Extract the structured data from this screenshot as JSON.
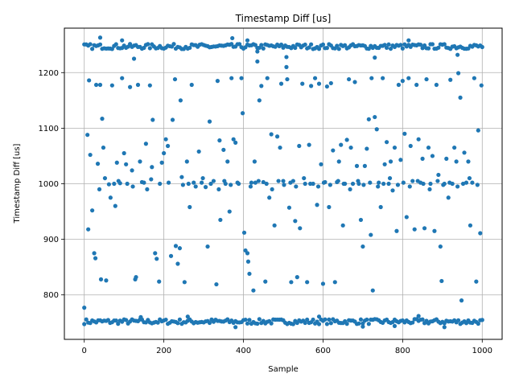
{
  "chart_data": {
    "type": "scatter",
    "title": "Timestamp Diff [us]",
    "xlabel": "Sample",
    "ylabel": "Timestamp Diff [us]",
    "xlim": [
      -50,
      1050
    ],
    "ylim": [
      720,
      1280
    ],
    "xticks": [
      0,
      200,
      400,
      600,
      800,
      1000
    ],
    "xtick_labels": [
      "0",
      "200",
      "400",
      "600",
      "800",
      "1000"
    ],
    "yticks": [
      800,
      900,
      1000,
      1100,
      1200
    ],
    "ytick_labels": [
      "800",
      "900",
      "1000",
      "1100",
      "1200"
    ],
    "grid": true,
    "legend": "none",
    "marker_color": "#1f77b4",
    "series": [
      {
        "points": [
          [
            0,
            777
          ],
          [
            8,
            1088
          ],
          [
            10,
            918
          ],
          [
            12,
            1186
          ],
          [
            20,
            952
          ],
          [
            25,
            875
          ],
          [
            28,
            866
          ],
          [
            30,
            1178
          ],
          [
            34,
            1036
          ],
          [
            40,
            1178
          ],
          [
            42,
            828
          ],
          [
            45,
            1117
          ],
          [
            48,
            1065
          ],
          [
            55,
            826
          ],
          [
            62,
            999
          ],
          [
            70,
            1177
          ],
          [
            75,
            1000
          ],
          [
            82,
            1038
          ],
          [
            90,
            1001
          ],
          [
            95,
            1190
          ],
          [
            100,
            1055
          ],
          [
            105,
            1035
          ],
          [
            115,
            1174
          ],
          [
            120,
            1024
          ],
          [
            128,
            828
          ],
          [
            130,
            832
          ],
          [
            135,
            1178
          ],
          [
            140,
            1040
          ],
          [
            150,
            1002
          ],
          [
            155,
            1072
          ],
          [
            165,
            1177
          ],
          [
            170,
            1030
          ],
          [
            172,
            1115
          ],
          [
            178,
            875
          ],
          [
            182,
            865
          ],
          [
            188,
            824
          ],
          [
            195,
            1038
          ],
          [
            200,
            1055
          ],
          [
            205,
            1080
          ],
          [
            210,
            1068
          ],
          [
            218,
            870
          ],
          [
            222,
            1115
          ],
          [
            228,
            1188
          ],
          [
            230,
            888
          ],
          [
            235,
            856
          ],
          [
            240,
            884
          ],
          [
            242,
            1150
          ],
          [
            245,
            1012
          ],
          [
            252,
            823
          ],
          [
            258,
            1040
          ],
          [
            265,
            958
          ],
          [
            270,
            1178
          ],
          [
            275,
            1002
          ],
          [
            288,
            1058
          ],
          [
            295,
            1002
          ],
          [
            305,
            994
          ],
          [
            310,
            887
          ],
          [
            315,
            1112
          ],
          [
            325,
            1005
          ],
          [
            332,
            819
          ],
          [
            335,
            1185
          ],
          [
            340,
            1078
          ],
          [
            342,
            935
          ],
          [
            350,
            1061
          ],
          [
            355,
            1000
          ],
          [
            360,
            1040
          ],
          [
            365,
            950
          ],
          [
            370,
            1190
          ],
          [
            375,
            1080
          ],
          [
            380,
            1074
          ],
          [
            385,
            1002
          ],
          [
            395,
            1190
          ],
          [
            398,
            1127
          ],
          [
            402,
            912
          ],
          [
            405,
            880
          ],
          [
            410,
            875
          ],
          [
            412,
            860
          ],
          [
            415,
            838
          ],
          [
            420,
            1002
          ],
          [
            425,
            808
          ],
          [
            428,
            1040
          ],
          [
            430,
            1002
          ],
          [
            435,
            1220
          ],
          [
            440,
            1150
          ],
          [
            445,
            1176
          ],
          [
            450,
            1003
          ],
          [
            455,
            824
          ],
          [
            460,
            1190
          ],
          [
            465,
            975
          ],
          [
            470,
            1089
          ],
          [
            478,
            925
          ],
          [
            485,
            1085
          ],
          [
            492,
            1065
          ],
          [
            495,
            1180
          ],
          [
            500,
            1005
          ],
          [
            508,
            1210
          ],
          [
            510,
            1188
          ],
          [
            515,
            957
          ],
          [
            520,
            823
          ],
          [
            525,
            1005
          ],
          [
            530,
            933
          ],
          [
            535,
            832
          ],
          [
            540,
            1068
          ],
          [
            542,
            920
          ],
          [
            548,
            1180
          ],
          [
            555,
            1000
          ],
          [
            560,
            823
          ],
          [
            565,
            1070
          ],
          [
            570,
            1176
          ],
          [
            575,
            1000
          ],
          [
            580,
            1190
          ],
          [
            585,
            962
          ],
          [
            590,
            1180
          ],
          [
            595,
            1035
          ],
          [
            600,
            820
          ],
          [
            605,
            1003
          ],
          [
            610,
            1175
          ],
          [
            615,
            958
          ],
          [
            620,
            1181
          ],
          [
            625,
            1060
          ],
          [
            630,
            823
          ],
          [
            635,
            1003
          ],
          [
            640,
            1040
          ],
          [
            645,
            1070
          ],
          [
            650,
            925
          ],
          [
            655,
            1000
          ],
          [
            660,
            1079
          ],
          [
            665,
            1188
          ],
          [
            670,
            1065
          ],
          [
            675,
            1000
          ],
          [
            680,
            1183
          ],
          [
            685,
            1032
          ],
          [
            690,
            1000
          ],
          [
            695,
            935
          ],
          [
            700,
            887
          ],
          [
            705,
            1032
          ],
          [
            710,
            1063
          ],
          [
            715,
            1116
          ],
          [
            720,
            908
          ],
          [
            722,
            1190
          ],
          [
            725,
            808
          ],
          [
            730,
            1120
          ],
          [
            735,
            1098
          ],
          [
            740,
            1002
          ],
          [
            745,
            958
          ],
          [
            750,
            1190
          ],
          [
            755,
            1035
          ],
          [
            760,
            1075
          ],
          [
            765,
            1000
          ],
          [
            770,
            1040
          ],
          [
            775,
            988
          ],
          [
            780,
            1065
          ],
          [
            785,
            915
          ],
          [
            790,
            1178
          ],
          [
            795,
            1043
          ],
          [
            800,
            1185
          ],
          [
            805,
            1090
          ],
          [
            810,
            940
          ],
          [
            815,
            1190
          ],
          [
            820,
            1068
          ],
          [
            825,
            1005
          ],
          [
            830,
            918
          ],
          [
            835,
            1178
          ],
          [
            840,
            1080
          ],
          [
            845,
            1002
          ],
          [
            850,
            1045
          ],
          [
            855,
            920
          ],
          [
            860,
            1188
          ],
          [
            865,
            1065
          ],
          [
            870,
            1000
          ],
          [
            875,
            1050
          ],
          [
            880,
            915
          ],
          [
            885,
            1178
          ],
          [
            890,
            1016
          ],
          [
            895,
            887
          ],
          [
            898,
            825
          ],
          [
            905,
            1000
          ],
          [
            910,
            1045
          ],
          [
            915,
            975
          ],
          [
            920,
            1187
          ],
          [
            925,
            1000
          ],
          [
            930,
            1065
          ],
          [
            935,
            1040
          ],
          [
            940,
            1199
          ],
          [
            945,
            1155
          ],
          [
            948,
            790
          ],
          [
            955,
            1056
          ],
          [
            960,
            1002
          ],
          [
            965,
            1040
          ],
          [
            970,
            925
          ],
          [
            975,
            1002
          ],
          [
            980,
            1190
          ],
          [
            985,
            824
          ],
          [
            990,
            1096
          ],
          [
            995,
            911
          ],
          [
            998,
            1177
          ],
          [
            15,
            1052
          ],
          [
            38,
            990
          ],
          [
            52,
            1010
          ],
          [
            66,
            975
          ],
          [
            78,
            960
          ],
          [
            86,
            1005
          ],
          [
            108,
            1000
          ],
          [
            122,
            995
          ],
          [
            145,
            1003
          ],
          [
            158,
            990
          ],
          [
            168,
            1008
          ],
          [
            190,
            1000
          ],
          [
            212,
            1002
          ],
          [
            248,
            998
          ],
          [
            262,
            1000
          ],
          [
            280,
            995
          ],
          [
            298,
            1010
          ],
          [
            318,
            1000
          ],
          [
            338,
            990
          ],
          [
            352,
            1005
          ],
          [
            368,
            998
          ],
          [
            388,
            1000
          ],
          [
            418,
            995
          ],
          [
            438,
            1005
          ],
          [
            458,
            1000
          ],
          [
            472,
            990
          ],
          [
            488,
            1005
          ],
          [
            502,
            998
          ],
          [
            518,
            1002
          ],
          [
            532,
            995
          ],
          [
            552,
            1010
          ],
          [
            568,
            1000
          ],
          [
            588,
            995
          ],
          [
            602,
            1002
          ],
          [
            618,
            998
          ],
          [
            638,
            1005
          ],
          [
            652,
            1000
          ],
          [
            668,
            990
          ],
          [
            688,
            1005
          ],
          [
            702,
            998
          ],
          [
            718,
            1002
          ],
          [
            738,
            995
          ],
          [
            752,
            1000
          ],
          [
            768,
            1010
          ],
          [
            788,
            998
          ],
          [
            802,
            1002
          ],
          [
            818,
            995
          ],
          [
            838,
            1005
          ],
          [
            852,
            1000
          ],
          [
            868,
            990
          ],
          [
            888,
            1005
          ],
          [
            902,
            998
          ],
          [
            918,
            1002
          ],
          [
            938,
            995
          ],
          [
            952,
            1000
          ],
          [
            968,
            1010
          ],
          [
            988,
            998
          ]
        ],
        "bands": [
          {
            "center": 752,
            "spread": 9,
            "count": 201
          },
          {
            "center": 1247,
            "spread": 9,
            "count": 201
          }
        ],
        "band_outliers": [
          [
            40,
            1263
          ],
          [
            95,
            1258
          ],
          [
            125,
            1225
          ],
          [
            372,
            1262
          ],
          [
            410,
            1258
          ],
          [
            435,
            1238
          ],
          [
            508,
            1228
          ],
          [
            730,
            1227
          ],
          [
            815,
            1258
          ],
          [
            938,
            1232
          ],
          [
            142,
            760
          ],
          [
            260,
            761
          ],
          [
            380,
            742
          ],
          [
            590,
            761
          ],
          [
            700,
            743
          ],
          [
            780,
            744
          ],
          [
            840,
            762
          ],
          [
            905,
            742
          ]
        ]
      }
    ]
  }
}
